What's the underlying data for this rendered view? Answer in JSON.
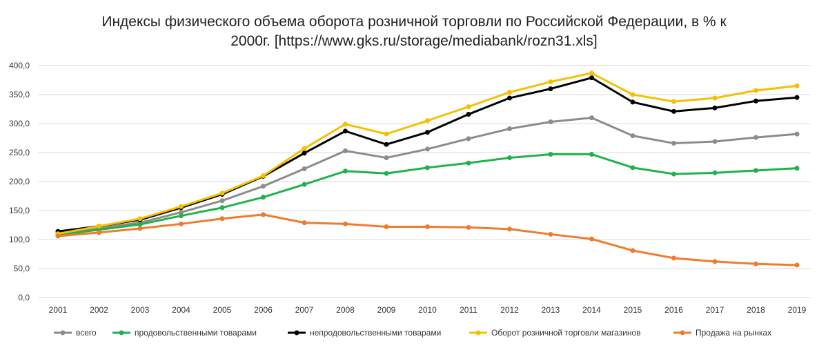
{
  "chart_data": {
    "type": "line",
    "title_line1": "Индексы физического объема оборота розничной торговли по Российской Федерации, в % к",
    "title_line2": "2000г. [https://www.gks.ru/storage/mediabank/rozn31.xls]",
    "xlabel": "",
    "ylabel": "",
    "ylim": [
      0,
      400
    ],
    "y_ticks": [
      "0,0",
      "50,0",
      "100,0",
      "150,0",
      "200,0",
      "250,0",
      "300,0",
      "350,0",
      "400,0"
    ],
    "categories": [
      "2001",
      "2002",
      "2003",
      "2004",
      "2005",
      "2006",
      "2007",
      "2008",
      "2009",
      "2010",
      "2011",
      "2012",
      "2013",
      "2014",
      "2015",
      "2016",
      "2017",
      "2018",
      "2019"
    ],
    "grid": true,
    "legend_position": "bottom",
    "series": [
      {
        "name": "всего",
        "color": "#8c8c8c",
        "values": [
          111,
          120,
          129,
          147,
          167,
          192,
          222,
          253,
          241,
          256,
          274,
          291,
          303,
          310,
          279,
          266,
          269,
          276,
          282
        ]
      },
      {
        "name": "продовольственными товарами",
        "color": "#1fb24a",
        "values": [
          108,
          117,
          126,
          141,
          155,
          173,
          195,
          218,
          214,
          224,
          232,
          241,
          247,
          247,
          224,
          213,
          215,
          219,
          223
        ]
      },
      {
        "name": "непродовольственными товарами",
        "color": "#000000",
        "values": [
          114,
          123,
          134,
          155,
          178,
          209,
          249,
          287,
          264,
          285,
          316,
          344,
          360,
          379,
          337,
          321,
          327,
          339,
          345
        ]
      },
      {
        "name": "Оборот розничной торговли магазинов",
        "color": "#f5c000",
        "values": [
          110,
          123,
          136,
          157,
          180,
          210,
          257,
          299,
          282,
          305,
          329,
          354,
          372,
          387,
          350,
          338,
          344,
          357,
          365
        ]
      },
      {
        "name": "Продажа на рынках",
        "color": "#f07b2e",
        "values": [
          106,
          112,
          119,
          127,
          136,
          143,
          129,
          127,
          122,
          122,
          121,
          118,
          109,
          101,
          81,
          68,
          62,
          58,
          56
        ]
      }
    ]
  }
}
